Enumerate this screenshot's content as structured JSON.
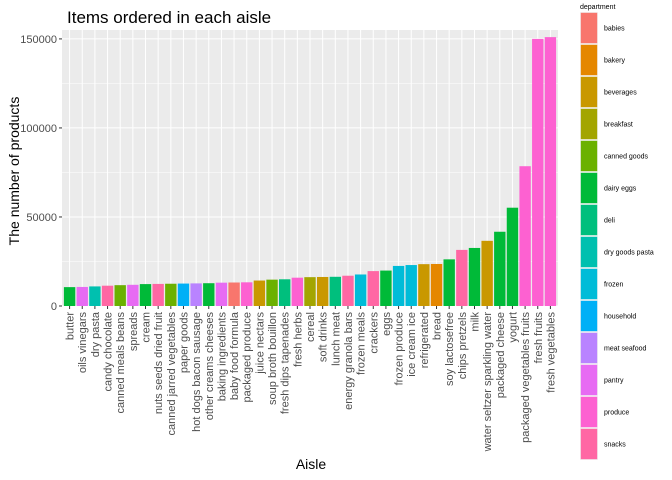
{
  "chart_data": {
    "type": "bar",
    "title": "Items ordered in each aisle",
    "xlabel": "Aisle",
    "ylabel": "The number of products",
    "ylim": [
      0,
      155000
    ],
    "yticks": [
      0,
      50000,
      100000,
      150000
    ],
    "ytick_labels": [
      "0",
      "50000",
      "100000",
      "150000"
    ],
    "grid": true,
    "legend_position": "right",
    "legend": {
      "title": "department",
      "entries": [
        {
          "name": "babies",
          "color": "#F8766D"
        },
        {
          "name": "bakery",
          "color": "#E58700"
        },
        {
          "name": "beverages",
          "color": "#C99800"
        },
        {
          "name": "breakfast",
          "color": "#A3A500"
        },
        {
          "name": "canned goods",
          "color": "#6BB100"
        },
        {
          "name": "dairy eggs",
          "color": "#00BA38"
        },
        {
          "name": "deli",
          "color": "#00BF7D"
        },
        {
          "name": "dry goods pasta",
          "color": "#00C0AF"
        },
        {
          "name": "frozen",
          "color": "#00BCD8"
        },
        {
          "name": "household",
          "color": "#00B0F6"
        },
        {
          "name": "meat seafood",
          "color": "#B983FF"
        },
        {
          "name": "pantry",
          "color": "#E76BF3"
        },
        {
          "name": "produce",
          "color": "#FD61D1"
        },
        {
          "name": "snacks",
          "color": "#FF67A4"
        }
      ]
    },
    "bars": [
      {
        "category": "butter",
        "value": 10600,
        "department": "dairy eggs"
      },
      {
        "category": "oils vinegars",
        "value": 10700,
        "department": "pantry"
      },
      {
        "category": "dry pasta",
        "value": 11000,
        "department": "dry goods pasta"
      },
      {
        "category": "candy chocolate",
        "value": 11400,
        "department": "snacks"
      },
      {
        "category": "canned meals beans",
        "value": 11700,
        "department": "canned goods"
      },
      {
        "category": "spreads",
        "value": 11900,
        "department": "pantry"
      },
      {
        "category": "cream",
        "value": 12300,
        "department": "dairy eggs"
      },
      {
        "category": "nuts seeds dried fruit",
        "value": 12400,
        "department": "snacks"
      },
      {
        "category": "canned jarred vegetables",
        "value": 12500,
        "department": "canned goods"
      },
      {
        "category": "paper goods",
        "value": 12600,
        "department": "household"
      },
      {
        "category": "hot dogs bacon sausage",
        "value": 12700,
        "department": "meat seafood"
      },
      {
        "category": "other creams cheeses",
        "value": 12800,
        "department": "dairy eggs"
      },
      {
        "category": "baking ingredients",
        "value": 13100,
        "department": "pantry"
      },
      {
        "category": "baby food formula",
        "value": 13200,
        "department": "babies"
      },
      {
        "category": "packaged produce",
        "value": 13300,
        "department": "produce"
      },
      {
        "category": "juice nectars",
        "value": 14300,
        "department": "beverages"
      },
      {
        "category": "soup broth bouillon",
        "value": 14800,
        "department": "canned goods"
      },
      {
        "category": "fresh dips tapenades",
        "value": 15000,
        "department": "deli"
      },
      {
        "category": "fresh herbs",
        "value": 15900,
        "department": "produce"
      },
      {
        "category": "cereal",
        "value": 16200,
        "department": "breakfast"
      },
      {
        "category": "soft drinks",
        "value": 16300,
        "department": "beverages"
      },
      {
        "category": "lunch meat",
        "value": 16400,
        "department": "deli"
      },
      {
        "category": "energy granola bars",
        "value": 17000,
        "department": "snacks"
      },
      {
        "category": "frozen meals",
        "value": 17700,
        "department": "frozen"
      },
      {
        "category": "crackers",
        "value": 19600,
        "department": "snacks"
      },
      {
        "category": "eggs",
        "value": 19900,
        "department": "dairy eggs"
      },
      {
        "category": "frozen produce",
        "value": 22500,
        "department": "frozen"
      },
      {
        "category": "ice cream ice",
        "value": 23000,
        "department": "frozen"
      },
      {
        "category": "refrigerated",
        "value": 23500,
        "department": "beverages"
      },
      {
        "category": "bread",
        "value": 23600,
        "department": "bakery"
      },
      {
        "category": "soy lactosefree",
        "value": 26200,
        "department": "dairy eggs"
      },
      {
        "category": "chips pretzels",
        "value": 31500,
        "department": "snacks"
      },
      {
        "category": "milk",
        "value": 32600,
        "department": "dairy eggs"
      },
      {
        "category": "water seltzer sparkling water",
        "value": 36600,
        "department": "beverages"
      },
      {
        "category": "packaged cheese",
        "value": 41700,
        "department": "dairy eggs"
      },
      {
        "category": "yogurt",
        "value": 55200,
        "department": "dairy eggs"
      },
      {
        "category": "packaged vegetables fruits",
        "value": 78500,
        "department": "produce"
      },
      {
        "category": "fresh fruits",
        "value": 150000,
        "department": "produce"
      },
      {
        "category": "fresh vegetables",
        "value": 151000,
        "department": "produce"
      }
    ]
  }
}
